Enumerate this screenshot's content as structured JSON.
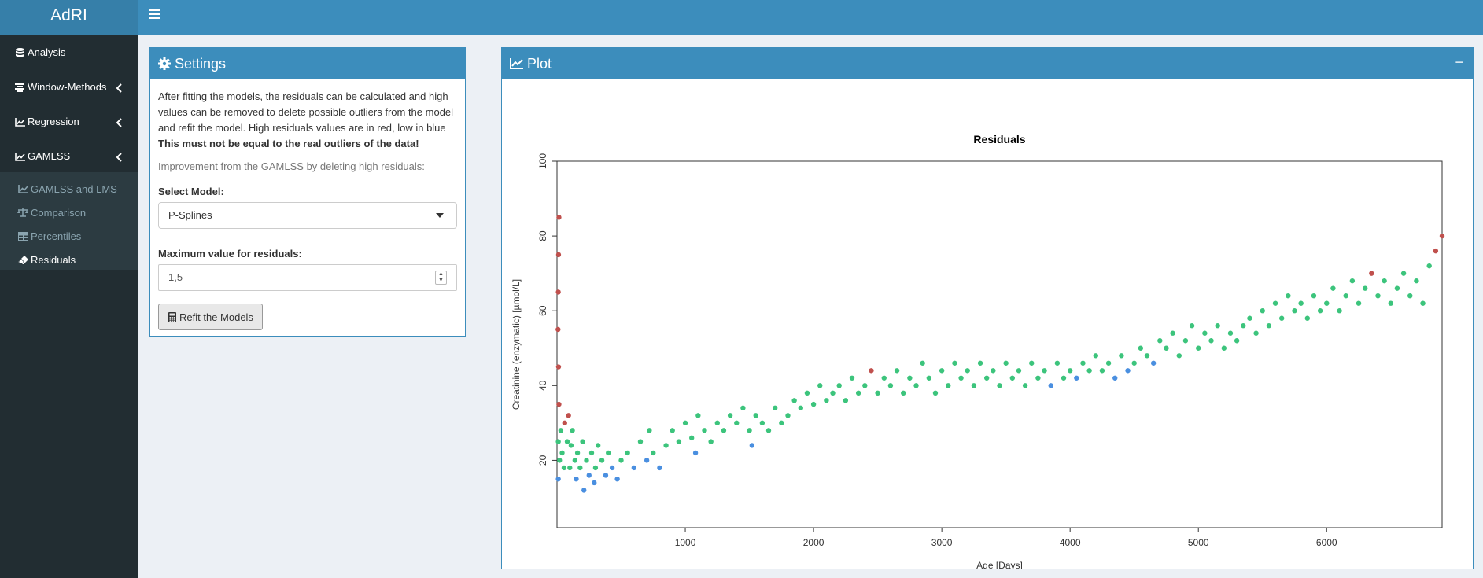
{
  "app": {
    "title": "AdRI"
  },
  "sidebar": {
    "items": [
      {
        "label": "Analysis",
        "icon": "database-icon"
      },
      {
        "label": "Window-Methods",
        "icon": "align-center-icon"
      },
      {
        "label": "Regression",
        "icon": "line-chart-icon"
      },
      {
        "label": "GAMLSS",
        "icon": "line-chart-icon"
      }
    ],
    "sub_items": [
      {
        "label": "GAMLSS and LMS",
        "icon": "line-chart-icon",
        "active": false
      },
      {
        "label": "Comparison",
        "icon": "balance-scale-icon",
        "active": false
      },
      {
        "label": "Percentiles",
        "icon": "table-icon",
        "active": false
      },
      {
        "label": "Residuals",
        "icon": "eraser-icon",
        "active": true
      }
    ]
  },
  "settings": {
    "title": "Settings",
    "description_prefix": "After fitting the models, the residuals can be calculated and high values can be removed to delete possible outliers from the model and refit the model. High residuals values are in red, low in blue ",
    "description_bold": "This must not be equal to the real outliers of the data!",
    "improvement_text": "Improvement from the GAMLSS by deleting high residuals:",
    "select_model_label": "Select Model:",
    "select_model_value": "P-Splines",
    "max_residual_label": "Maximum value for residuals:",
    "max_residual_value": "1,5",
    "refit_button": "Refit the Models"
  },
  "plot": {
    "title": "Plot",
    "collapse": "−"
  },
  "colors": {
    "header": "#3c8dbc",
    "logo": "#367fa9",
    "sidebar": "#222d32",
    "high_residual": "#c0504d",
    "mid_residual": "#3cc47c",
    "low_residual": "#4a8fe0"
  },
  "chart_data": {
    "type": "scatter",
    "title": "Residuals",
    "xlabel": "Age [Days]",
    "ylabel": "Creatinine (enzymatic) [µmol/L]",
    "xlim": [
      0,
      6900
    ],
    "ylim": [
      2,
      100
    ],
    "xticks": [
      1000,
      2000,
      3000,
      4000,
      5000,
      6000
    ],
    "yticks": [
      20,
      40,
      60,
      80,
      100
    ],
    "grid": false,
    "legend": "none",
    "color_scale": "residual value: red = high, green = medium, blue = low",
    "series": [
      {
        "points": [
          [
            10,
            15
          ],
          [
            10,
            25
          ],
          [
            15,
            35
          ],
          [
            12,
            45
          ],
          [
            8,
            55
          ],
          [
            10,
            65
          ],
          [
            12,
            75
          ],
          [
            15,
            85
          ],
          [
            20,
            20
          ],
          [
            30,
            28
          ],
          [
            40,
            22
          ],
          [
            55,
            18
          ],
          [
            60,
            30
          ],
          [
            80,
            25
          ],
          [
            90,
            32
          ],
          [
            100,
            18
          ],
          [
            110,
            24
          ],
          [
            120,
            28
          ],
          [
            140,
            20
          ],
          [
            150,
            15
          ],
          [
            160,
            22
          ],
          [
            180,
            18
          ],
          [
            200,
            25
          ],
          [
            210,
            12
          ],
          [
            230,
            20
          ],
          [
            250,
            16
          ],
          [
            270,
            22
          ],
          [
            290,
            14
          ],
          [
            300,
            18
          ],
          [
            320,
            24
          ],
          [
            350,
            20
          ],
          [
            380,
            16
          ],
          [
            400,
            22
          ],
          [
            430,
            18
          ],
          [
            470,
            15
          ],
          [
            500,
            20
          ],
          [
            550,
            22
          ],
          [
            600,
            18
          ],
          [
            650,
            25
          ],
          [
            700,
            20
          ],
          [
            720,
            28
          ],
          [
            750,
            22
          ],
          [
            800,
            18
          ],
          [
            850,
            24
          ],
          [
            900,
            28
          ],
          [
            950,
            25
          ],
          [
            1000,
            30
          ],
          [
            1050,
            26
          ],
          [
            1080,
            22
          ],
          [
            1100,
            32
          ],
          [
            1150,
            28
          ],
          [
            1200,
            25
          ],
          [
            1250,
            30
          ],
          [
            1300,
            28
          ],
          [
            1350,
            32
          ],
          [
            1400,
            30
          ],
          [
            1450,
            34
          ],
          [
            1500,
            28
          ],
          [
            1520,
            24
          ],
          [
            1550,
            32
          ],
          [
            1600,
            30
          ],
          [
            1650,
            28
          ],
          [
            1700,
            34
          ],
          [
            1750,
            30
          ],
          [
            1800,
            32
          ],
          [
            1850,
            36
          ],
          [
            1900,
            34
          ],
          [
            1950,
            38
          ],
          [
            2000,
            35
          ],
          [
            2050,
            40
          ],
          [
            2100,
            36
          ],
          [
            2150,
            38
          ],
          [
            2200,
            40
          ],
          [
            2250,
            36
          ],
          [
            2300,
            42
          ],
          [
            2350,
            38
          ],
          [
            2400,
            40
          ],
          [
            2450,
            44
          ],
          [
            2500,
            38
          ],
          [
            2550,
            42
          ],
          [
            2600,
            40
          ],
          [
            2650,
            44
          ],
          [
            2700,
            38
          ],
          [
            2750,
            42
          ],
          [
            2800,
            40
          ],
          [
            2850,
            46
          ],
          [
            2900,
            42
          ],
          [
            2950,
            38
          ],
          [
            3000,
            44
          ],
          [
            3050,
            40
          ],
          [
            3100,
            46
          ],
          [
            3150,
            42
          ],
          [
            3200,
            44
          ],
          [
            3250,
            40
          ],
          [
            3300,
            46
          ],
          [
            3350,
            42
          ],
          [
            3400,
            44
          ],
          [
            3450,
            40
          ],
          [
            3500,
            46
          ],
          [
            3550,
            42
          ],
          [
            3600,
            44
          ],
          [
            3650,
            40
          ],
          [
            3700,
            46
          ],
          [
            3750,
            42
          ],
          [
            3800,
            44
          ],
          [
            3850,
            40
          ],
          [
            3900,
            46
          ],
          [
            3950,
            42
          ],
          [
            4000,
            44
          ],
          [
            4050,
            42
          ],
          [
            4100,
            46
          ],
          [
            4150,
            44
          ],
          [
            4200,
            48
          ],
          [
            4250,
            44
          ],
          [
            4300,
            46
          ],
          [
            4350,
            42
          ],
          [
            4400,
            48
          ],
          [
            4450,
            44
          ],
          [
            4500,
            46
          ],
          [
            4550,
            50
          ],
          [
            4600,
            48
          ],
          [
            4650,
            46
          ],
          [
            4700,
            52
          ],
          [
            4750,
            50
          ],
          [
            4800,
            54
          ],
          [
            4850,
            48
          ],
          [
            4900,
            52
          ],
          [
            4950,
            56
          ],
          [
            5000,
            50
          ],
          [
            5050,
            54
          ],
          [
            5100,
            52
          ],
          [
            5150,
            56
          ],
          [
            5200,
            50
          ],
          [
            5250,
            54
          ],
          [
            5300,
            52
          ],
          [
            5350,
            56
          ],
          [
            5400,
            58
          ],
          [
            5450,
            54
          ],
          [
            5500,
            60
          ],
          [
            5550,
            56
          ],
          [
            5600,
            62
          ],
          [
            5650,
            58
          ],
          [
            5700,
            64
          ],
          [
            5750,
            60
          ],
          [
            5800,
            62
          ],
          [
            5850,
            58
          ],
          [
            5900,
            64
          ],
          [
            5950,
            60
          ],
          [
            6000,
            62
          ],
          [
            6050,
            66
          ],
          [
            6100,
            60
          ],
          [
            6150,
            64
          ],
          [
            6200,
            68
          ],
          [
            6250,
            62
          ],
          [
            6300,
            66
          ],
          [
            6350,
            70
          ],
          [
            6400,
            64
          ],
          [
            6450,
            68
          ],
          [
            6500,
            62
          ],
          [
            6550,
            66
          ],
          [
            6600,
            70
          ],
          [
            6650,
            64
          ],
          [
            6700,
            68
          ],
          [
            6750,
            62
          ],
          [
            6800,
            72
          ],
          [
            6850,
            76
          ],
          [
            6900,
            80
          ]
        ]
      }
    ]
  }
}
